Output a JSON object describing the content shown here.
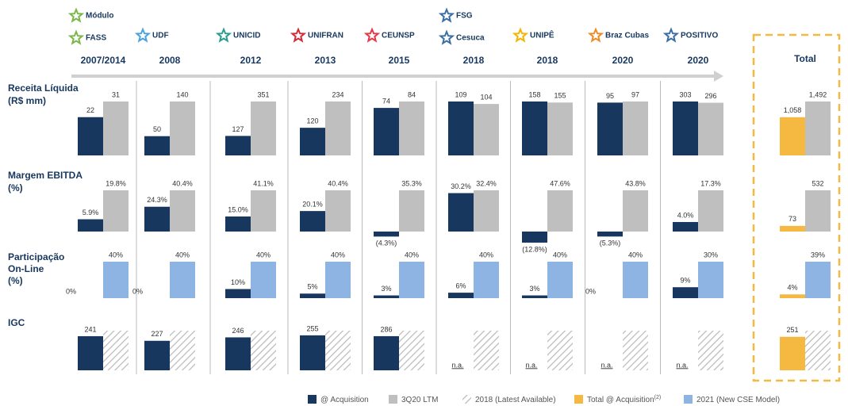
{
  "columns": [
    {
      "year": "2007/2014",
      "logos": [
        "Módulo",
        "FASS"
      ]
    },
    {
      "year": "2008",
      "logos": [
        "UDF"
      ]
    },
    {
      "year": "2012",
      "logos": [
        "UNICID"
      ]
    },
    {
      "year": "2013",
      "logos": [
        "UNIFRAN"
      ]
    },
    {
      "year": "2015",
      "logos": [
        "CEUNSP"
      ]
    },
    {
      "year": "2018",
      "logos": [
        "FSG",
        "Cesuca"
      ]
    },
    {
      "year": "2018",
      "logos": [
        "UNIPÊ"
      ]
    },
    {
      "year": "2020",
      "logos": [
        "Braz Cubas"
      ]
    },
    {
      "year": "2020",
      "logos": [
        "POSITIVO"
      ]
    },
    {
      "year": "Total",
      "logos": []
    }
  ],
  "chart_data": [
    {
      "type": "bar",
      "title": [
        "Receita Líquida",
        "(R$ mm)"
      ],
      "total_color": "#f5b942",
      "series": [
        {
          "color": "#17375e",
          "values": [
            22,
            50,
            127,
            120,
            74,
            109,
            158,
            95,
            303,
            1058
          ],
          "value_labels": [
            "22",
            "50",
            "127",
            "120",
            "74",
            "109",
            "158",
            "95",
            "303",
            "1,058"
          ]
        },
        {
          "color": "#bfbfbf",
          "values": [
            31,
            140,
            351,
            234,
            84,
            104,
            155,
            97,
            296,
            1492
          ],
          "value_labels": [
            "31",
            "140",
            "351",
            "234",
            "84",
            "104",
            "155",
            "97",
            "296",
            "1,492"
          ]
        }
      ]
    },
    {
      "type": "bar",
      "title": [
        "Margem EBITDA",
        "(%)"
      ],
      "total_color": "#f5b942",
      "series": [
        {
          "color": "#17375e",
          "values": [
            5.9,
            24.3,
            15.0,
            20.1,
            -4.3,
            30.2,
            -12.8,
            -5.3,
            4.0,
            73
          ],
          "value_labels": [
            "5.9%",
            "24.3%",
            "15.0%",
            "20.1%",
            "(4.3%)",
            "30.2%",
            "(12.8%)",
            "(5.3%)",
            "4.0%",
            "73"
          ]
        },
        {
          "color": "#bfbfbf",
          "values": [
            19.8,
            40.4,
            41.1,
            40.4,
            35.3,
            32.4,
            47.6,
            43.8,
            17.3,
            532
          ],
          "value_labels": [
            "19.8%",
            "40.4%",
            "41.1%",
            "40.4%",
            "35.3%",
            "32.4%",
            "47.6%",
            "43.8%",
            "17.3%",
            "532"
          ]
        }
      ]
    },
    {
      "type": "bar",
      "title": [
        "Participação",
        "On-Line",
        "(%)"
      ],
      "total_color": "#f5b942",
      "series": [
        {
          "color": "#17375e",
          "values": [
            0,
            0,
            10,
            5,
            3,
            6,
            3,
            0,
            9,
            4
          ],
          "value_labels": [
            "0%",
            "0%",
            "10%",
            "5%",
            "3%",
            "6%",
            "3%",
            "0%",
            "9%",
            "4%"
          ]
        },
        {
          "color": "#8eb4e3",
          "values": [
            40,
            40,
            40,
            40,
            40,
            40,
            40,
            40,
            30,
            39
          ],
          "value_labels": [
            "40%",
            "40%",
            "40%",
            "40%",
            "40%",
            "40%",
            "40%",
            "40%",
            "30%",
            "39%"
          ]
        }
      ]
    },
    {
      "type": "bar",
      "title": [
        "IGC"
      ],
      "total_color": "#f5b942",
      "series": [
        {
          "color": "#17375e",
          "values": [
            241,
            227,
            246,
            255,
            286,
            null,
            null,
            null,
            null,
            251
          ],
          "value_labels": [
            "241",
            "227",
            "246",
            "255",
            "286",
            "n.a.",
            "n.a.",
            "n.a.",
            "n.a.",
            "251"
          ]
        },
        {
          "color": "#bfbfbf",
          "pattern": "hatch",
          "values": [
            280,
            305,
            296,
            289,
            332,
            293,
            285,
            286,
            311,
            297
          ]
        }
      ]
    }
  ],
  "legend": [
    {
      "name": "@ Acquisition",
      "color": "#17375e"
    },
    {
      "name": "3Q20 LTM",
      "color": "#bfbfbf"
    },
    {
      "name": "2018 (Latest Available)",
      "color": "#bfbfbf",
      "pattern": "hatch"
    },
    {
      "name": "Total @ Acquisition",
      "sup": "(2)",
      "color": "#f5b942"
    },
    {
      "name": "2021 (New CSE Model)",
      "color": "#8eb4e3"
    }
  ]
}
